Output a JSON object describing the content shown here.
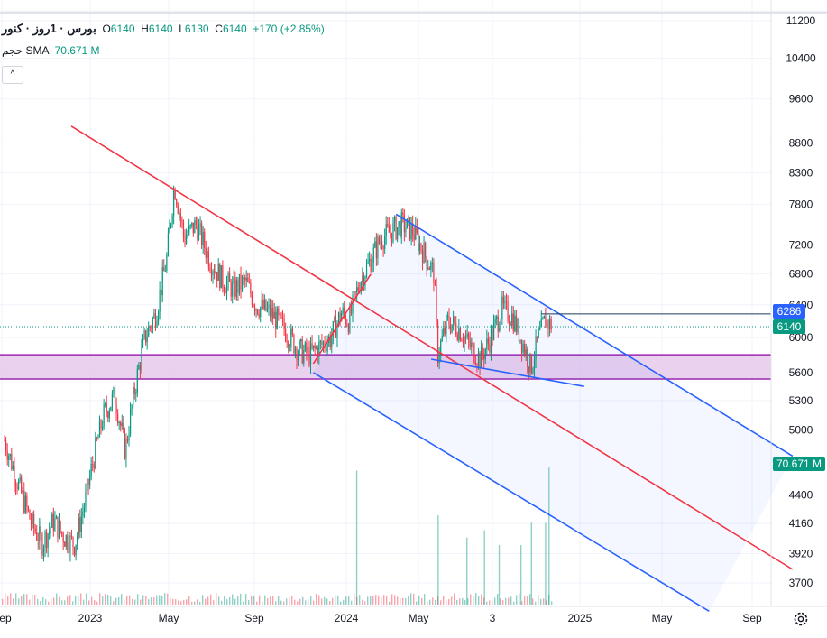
{
  "legend": {
    "symbol": "بورس · 1روز · کنور",
    "open_label": "O",
    "open": "6140",
    "high_label": "H",
    "high": "6140",
    "low_label": "L",
    "low": "6130",
    "close_label": "C",
    "close": "6140",
    "change": "+170 (+2.85%)",
    "volume_label": "حجم SMA",
    "volume_value": "70.671 M",
    "collapse_glyph": "^"
  },
  "colors": {
    "up": "#089981",
    "down": "#f23645",
    "channel_red": "#f23645",
    "channel_blue": "#2962ff",
    "zone_fill": "#e1bee7",
    "zone_border": "#9c27b0",
    "badge_blue": "#2962ff",
    "badge_green": "#089981"
  },
  "chart_data": {
    "type": "candlestick",
    "y_axis_scale": "log",
    "ylim": [
      3500,
      11500
    ],
    "y_ticks": [
      "11200",
      "10400",
      "9600",
      "8800",
      "8300",
      "7800",
      "7200",
      "6800",
      "6400",
      "6000",
      "5600",
      "5300",
      "5000",
      "4400",
      "4160",
      "3920",
      "3700"
    ],
    "x_ticks": [
      "Sep",
      "2023",
      "May",
      "Sep",
      "2024",
      "May",
      "3",
      "2025",
      "May",
      "Sep"
    ],
    "price_badges": [
      {
        "label": "6286",
        "value": 6286,
        "color": "badge_blue"
      },
      {
        "label": "6140",
        "value": 6140,
        "color": "badge_green"
      },
      {
        "label": "70.671 M",
        "value": 4700,
        "color": "badge_green"
      }
    ],
    "price_path": [
      [
        "2022-09-01",
        4900
      ],
      [
        "2022-09-20",
        4500
      ],
      [
        "2022-10-10",
        4150
      ],
      [
        "2022-10-25",
        4000
      ],
      [
        "2022-11-10",
        4180
      ],
      [
        "2022-11-25",
        4050
      ],
      [
        "2022-12-10",
        3990
      ],
      [
        "2022-12-25",
        4350
      ],
      [
        "2023-01-05",
        4700
      ],
      [
        "2023-01-20",
        5150
      ],
      [
        "2023-02-05",
        5350
      ],
      [
        "2023-02-20",
        4800
      ],
      [
        "2023-03-05",
        5400
      ],
      [
        "2023-03-20",
        6000
      ],
      [
        "2023-04-05",
        6300
      ],
      [
        "2023-04-20",
        7000
      ],
      [
        "2023-05-01",
        8100
      ],
      [
        "2023-05-15",
        7300
      ],
      [
        "2023-06-01",
        7500
      ],
      [
        "2023-06-20",
        7000
      ],
      [
        "2023-07-10",
        6700
      ],
      [
        "2023-07-25",
        6600
      ],
      [
        "2023-08-10",
        6700
      ],
      [
        "2023-08-25",
        6400
      ],
      [
        "2023-09-15",
        6300
      ],
      [
        "2023-10-05",
        6100
      ],
      [
        "2023-10-25",
        5850
      ],
      [
        "2023-11-10",
        5800
      ],
      [
        "2023-11-25",
        5900
      ],
      [
        "2023-12-10",
        6000
      ],
      [
        "2023-12-25",
        6300
      ],
      [
        "2024-01-05",
        6200
      ],
      [
        "2024-01-20",
        6700
      ],
      [
        "2024-02-05",
        7000
      ],
      [
        "2024-02-20",
        7300
      ],
      [
        "2024-03-05",
        7400
      ],
      [
        "2024-03-20",
        7500
      ],
      [
        "2024-04-05",
        7400
      ],
      [
        "2024-04-20",
        7100
      ],
      [
        "2024-05-05",
        6800
      ],
      [
        "2024-05-10",
        5800
      ],
      [
        "2024-05-25",
        6200
      ],
      [
        "2024-06-10",
        6100
      ],
      [
        "2024-06-25",
        5900
      ],
      [
        "2024-07-10",
        5750
      ],
      [
        "2024-07-25",
        6000
      ],
      [
        "2024-08-10",
        6350
      ],
      [
        "2024-08-25",
        6250
      ],
      [
        "2024-09-10",
        5900
      ],
      [
        "2024-09-20",
        5650
      ],
      [
        "2024-10-01",
        6000
      ],
      [
        "2024-10-10",
        6200
      ],
      [
        "2024-10-20",
        6140
      ]
    ],
    "volume_spikes": [
      [
        "2024-01-15",
        0.9
      ],
      [
        "2024-05-10",
        0.6
      ],
      [
        "2024-06-20",
        0.45
      ],
      [
        "2024-07-15",
        0.5
      ],
      [
        "2024-08-05",
        0.4
      ],
      [
        "2024-09-05",
        0.4
      ],
      [
        "2024-09-20",
        0.55
      ],
      [
        "2024-10-10",
        0.55
      ],
      [
        "2024-10-15",
        0.92
      ]
    ],
    "drawings": {
      "red_channel": [
        [
          [
            "2022-12-05",
            9100
          ],
          [
            "2025-09-28",
            3800
          ]
        ],
        [
          [
            "2023-11-15",
            5700
          ],
          [
            "2024-02-05",
            6800
          ]
        ]
      ],
      "blue_channel": [
        [
          [
            "2024-03-12",
            7650
          ],
          [
            "2025-09-28",
            4750
          ]
        ],
        [
          [
            "2023-11-15",
            5600
          ],
          [
            "2025-06-01",
            3500
          ]
        ]
      ],
      "blue_wedge_bottom": [
        [
          "2024-05-01",
          5750
        ],
        [
          "2024-12-05",
          5450
        ]
      ],
      "support_zone": [
        5530,
        5800
      ],
      "resistance_line": {
        "from": "2024-10-05",
        "value": 6286
      }
    }
  }
}
